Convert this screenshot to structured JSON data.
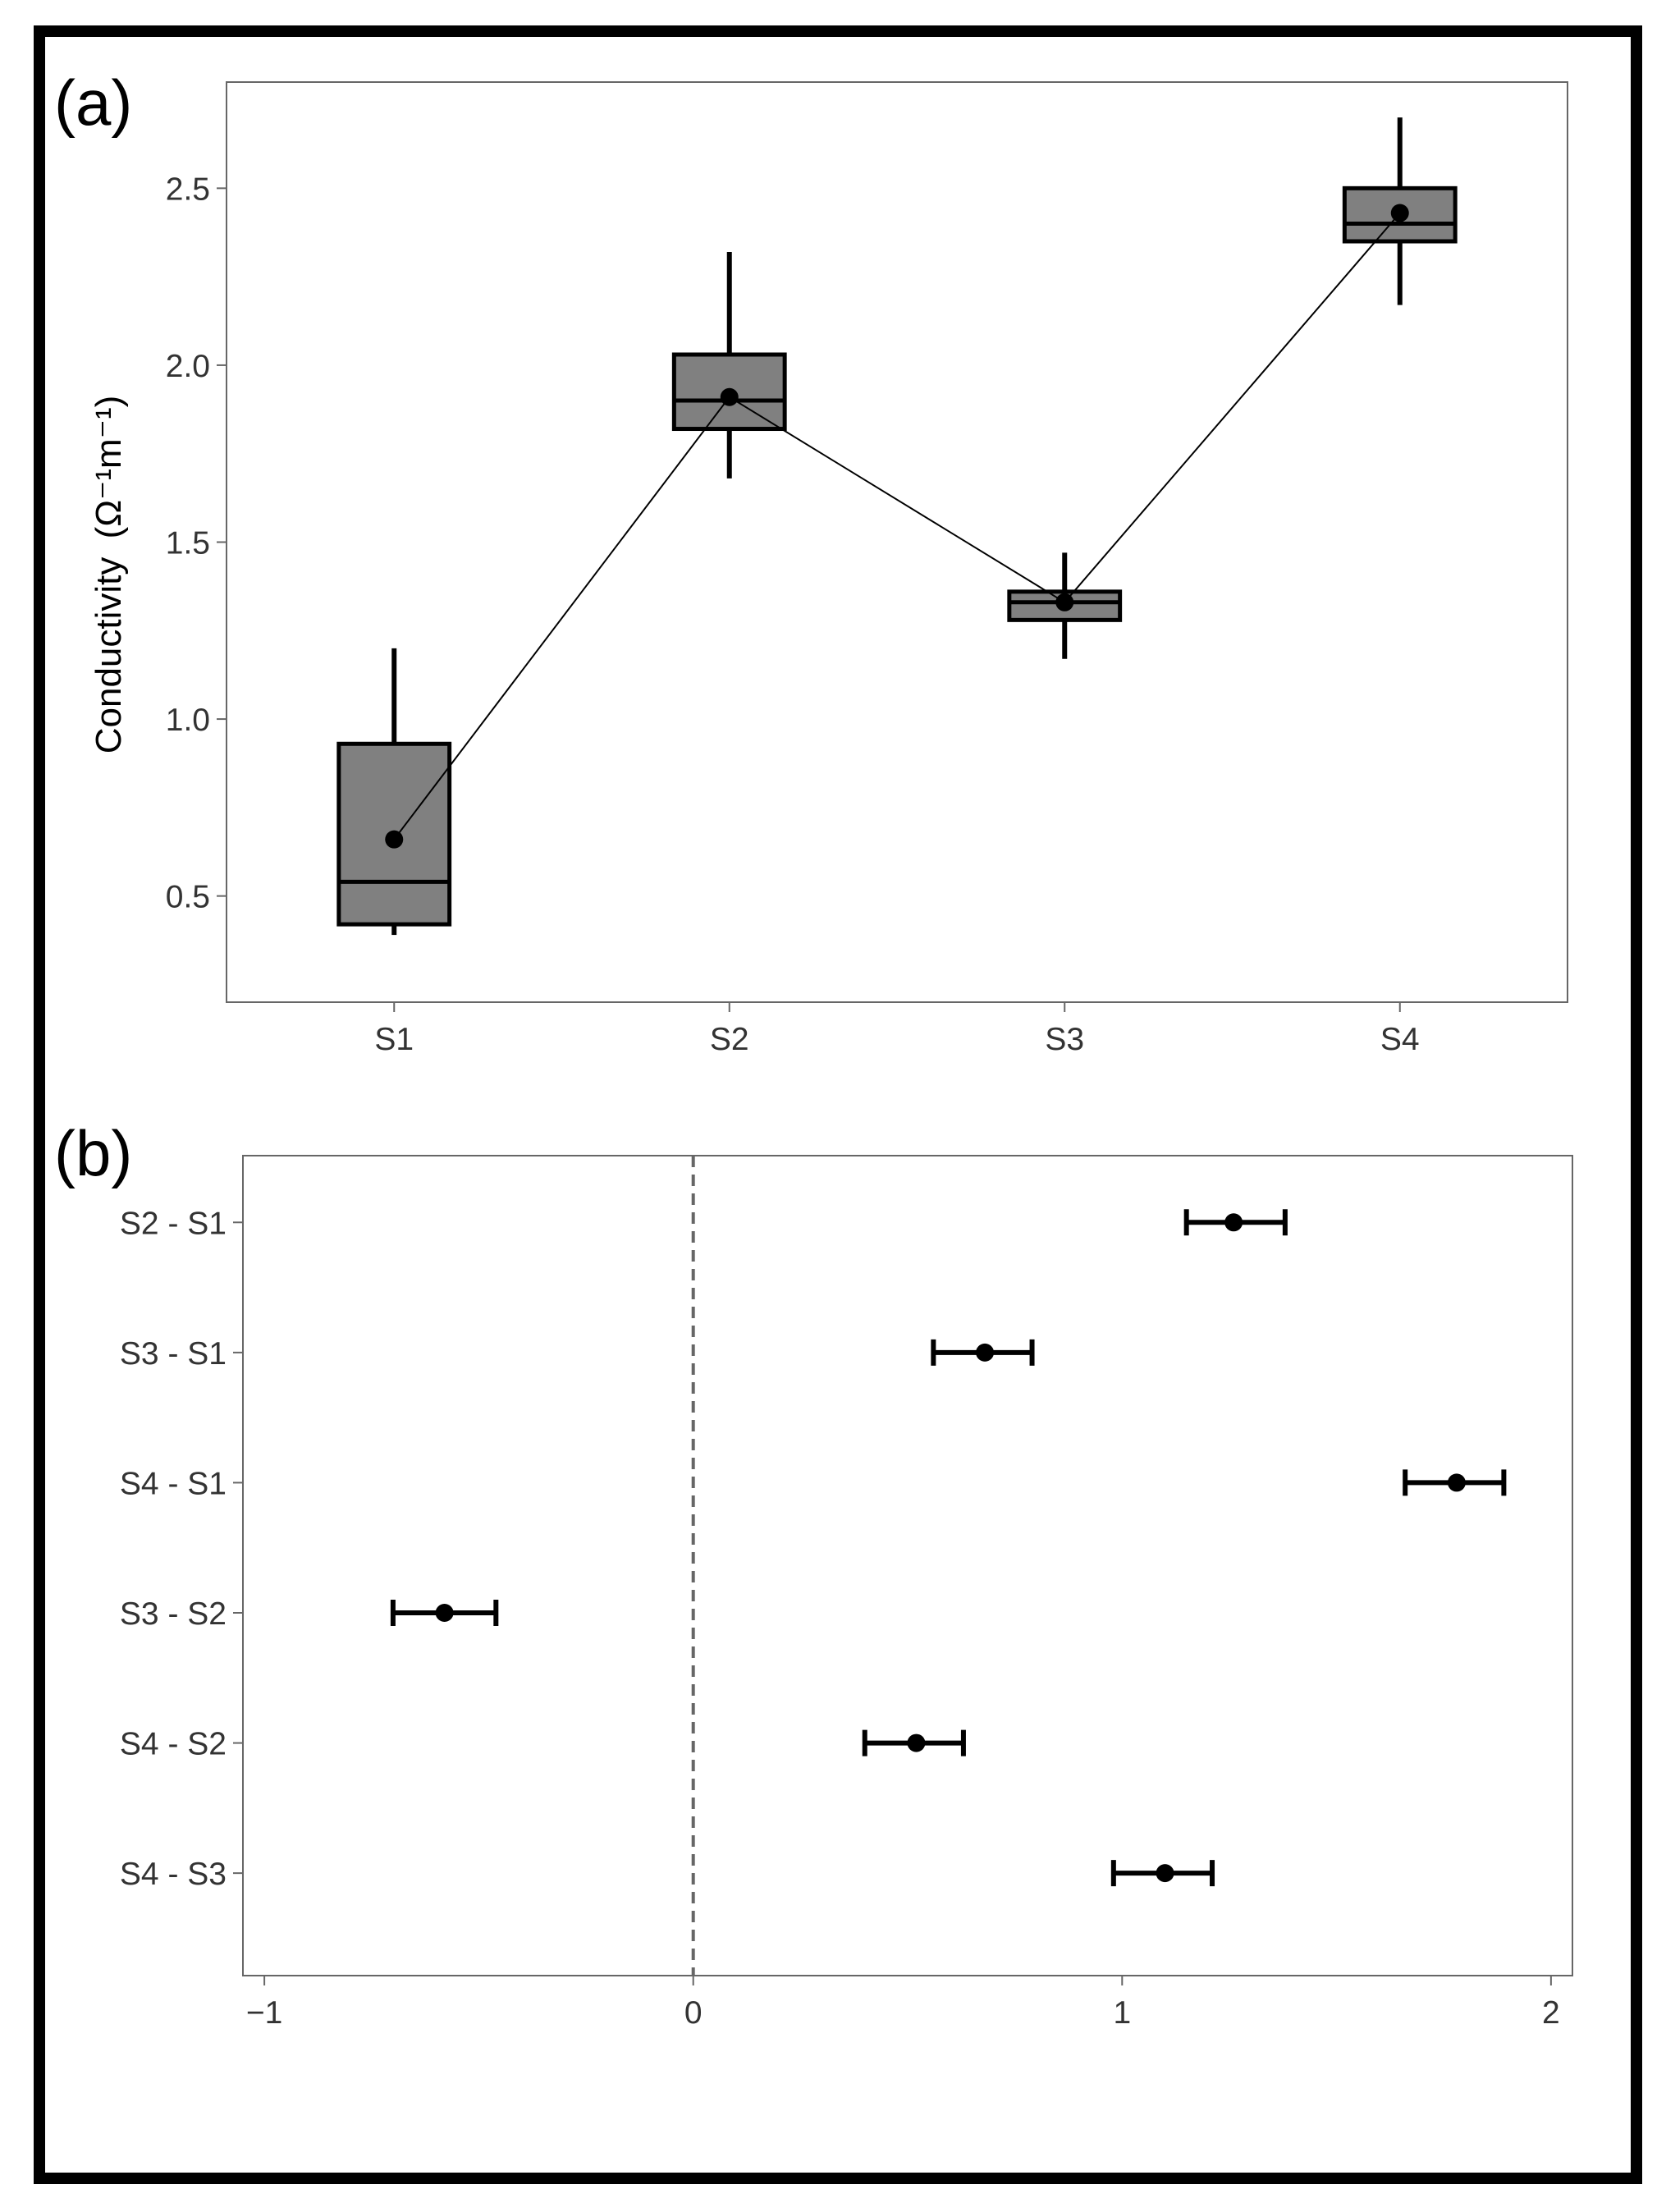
{
  "chart_data": [
    {
      "panel": "(a)",
      "type": "box",
      "xlabel": "",
      "ylabel_main": "Conductivity",
      "ylabel_units": "(Ω⁻¹m⁻¹)",
      "ylim": [
        0.2,
        2.8
      ],
      "yticks": [
        0.5,
        1.0,
        1.5,
        2.0,
        2.5
      ],
      "ytick_labels": [
        "0.5",
        "1.0",
        "1.5",
        "2.0",
        "2.5"
      ],
      "categories": [
        "S1",
        "S2",
        "S3",
        "S4"
      ],
      "boxes": [
        {
          "category": "S1",
          "whisker_low": 0.39,
          "q1": 0.42,
          "median": 0.54,
          "q3": 0.93,
          "whisker_high": 1.2,
          "mean": 0.66
        },
        {
          "category": "S2",
          "whisker_low": 1.68,
          "q1": 1.82,
          "median": 1.9,
          "q3": 2.03,
          "whisker_high": 2.32,
          "mean": 1.91
        },
        {
          "category": "S3",
          "whisker_low": 1.17,
          "q1": 1.28,
          "median": 1.33,
          "q3": 1.36,
          "whisker_high": 1.47,
          "mean": 1.33
        },
        {
          "category": "S4",
          "whisker_low": 2.17,
          "q1": 2.35,
          "median": 2.4,
          "q3": 2.5,
          "whisker_high": 2.7,
          "mean": 2.43
        }
      ],
      "mean_line": true,
      "box_fill": "#808080"
    },
    {
      "panel": "(b)",
      "type": "errorbar",
      "xlabel": "",
      "ylabel": "",
      "xlim": [
        -1.05,
        2.05
      ],
      "xticks": [
        -1,
        0,
        1,
        2
      ],
      "xtick_labels": [
        "−1",
        "0",
        "1",
        "2"
      ],
      "reference_line": 0,
      "comparisons": [
        {
          "label": "S2 - S1",
          "estimate": 1.26,
          "lower": 1.15,
          "upper": 1.38
        },
        {
          "label": "S3 - S1",
          "estimate": 0.68,
          "lower": 0.56,
          "upper": 0.79
        },
        {
          "label": "S4 - S1",
          "estimate": 1.78,
          "lower": 1.66,
          "upper": 1.89
        },
        {
          "label": "S3 - S2",
          "estimate": -0.58,
          "lower": -0.7,
          "upper": -0.46
        },
        {
          "label": "S4 - S2",
          "estimate": 0.52,
          "lower": 0.4,
          "upper": 0.63
        },
        {
          "label": "S4 - S3",
          "estimate": 1.1,
          "lower": 0.98,
          "upper": 1.21
        }
      ]
    }
  ]
}
